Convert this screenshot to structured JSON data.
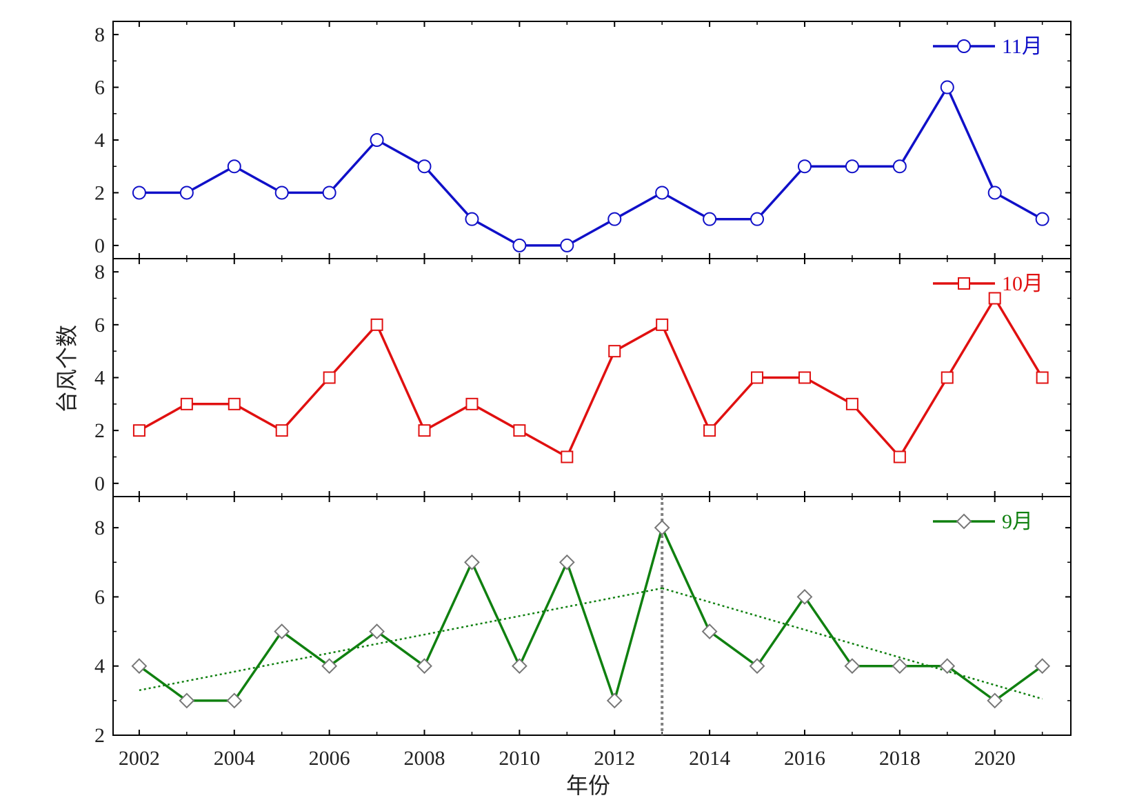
{
  "chart_data": {
    "type": "line",
    "xlabel": "年份",
    "ylabel": "台风个数",
    "x_ticks": [
      "2002",
      "2004",
      "2006",
      "2008",
      "2010",
      "2012",
      "2014",
      "2016",
      "2018",
      "2020"
    ],
    "xlim": [
      2001.45,
      2021.6
    ],
    "shared_x": true,
    "grid": false,
    "legend_position": "top-right",
    "panels": [
      {
        "series": [
          {
            "name": "11月",
            "color": "#1010c8",
            "marker": "circle",
            "x": [
              2002,
              2003,
              2004,
              2005,
              2006,
              2007,
              2008,
              2009,
              2010,
              2011,
              2012,
              2013,
              2014,
              2015,
              2016,
              2017,
              2018,
              2019,
              2020,
              2021
            ],
            "values": [
              2,
              2,
              3,
              2,
              2,
              4,
              3,
              1,
              0,
              0,
              1,
              2,
              1,
              1,
              3,
              3,
              3,
              6,
              2,
              1
            ]
          }
        ],
        "ylim": [
          -0.5,
          8.5
        ],
        "y_ticks": [
          "0",
          "2",
          "4",
          "6",
          "8"
        ]
      },
      {
        "series": [
          {
            "name": "10月",
            "color": "#e01010",
            "marker": "square",
            "x": [
              2002,
              2003,
              2004,
              2005,
              2006,
              2007,
              2008,
              2009,
              2010,
              2011,
              2012,
              2013,
              2014,
              2015,
              2016,
              2017,
              2018,
              2019,
              2020,
              2021
            ],
            "values": [
              2,
              3,
              3,
              2,
              4,
              6,
              2,
              3,
              2,
              1,
              5,
              6,
              2,
              4,
              4,
              3,
              1,
              4,
              7,
              4
            ]
          }
        ],
        "ylim": [
          -0.5,
          8.5
        ],
        "y_ticks": [
          "0",
          "2",
          "4",
          "6",
          "8"
        ]
      },
      {
        "series": [
          {
            "name": "9月",
            "color": "#108010",
            "marker": "diamond",
            "x": [
              2002,
              2003,
              2004,
              2005,
              2006,
              2007,
              2008,
              2009,
              2010,
              2011,
              2012,
              2013,
              2014,
              2015,
              2016,
              2017,
              2018,
              2019,
              2020,
              2021
            ],
            "values": [
              4,
              3,
              3,
              5,
              4,
              5,
              4,
              7,
              4,
              7,
              3,
              8,
              5,
              4,
              6,
              4,
              4,
              4,
              3,
              4
            ]
          }
        ],
        "ylim": [
          2,
          8.9
        ],
        "y_ticks": [
          "2",
          "4",
          "6",
          "8"
        ],
        "trend_lines": [
          {
            "x": [
              2002,
              2013
            ],
            "values": [
              3.3,
              6.25
            ],
            "color": "#108010",
            "style": "dotted"
          },
          {
            "x": [
              2013,
              2021
            ],
            "values": [
              6.25,
              3.05
            ],
            "color": "#108010",
            "style": "dotted"
          }
        ],
        "vertical_marker": {
          "x": 2013,
          "color": "#808080",
          "style": "dotted"
        }
      }
    ]
  }
}
